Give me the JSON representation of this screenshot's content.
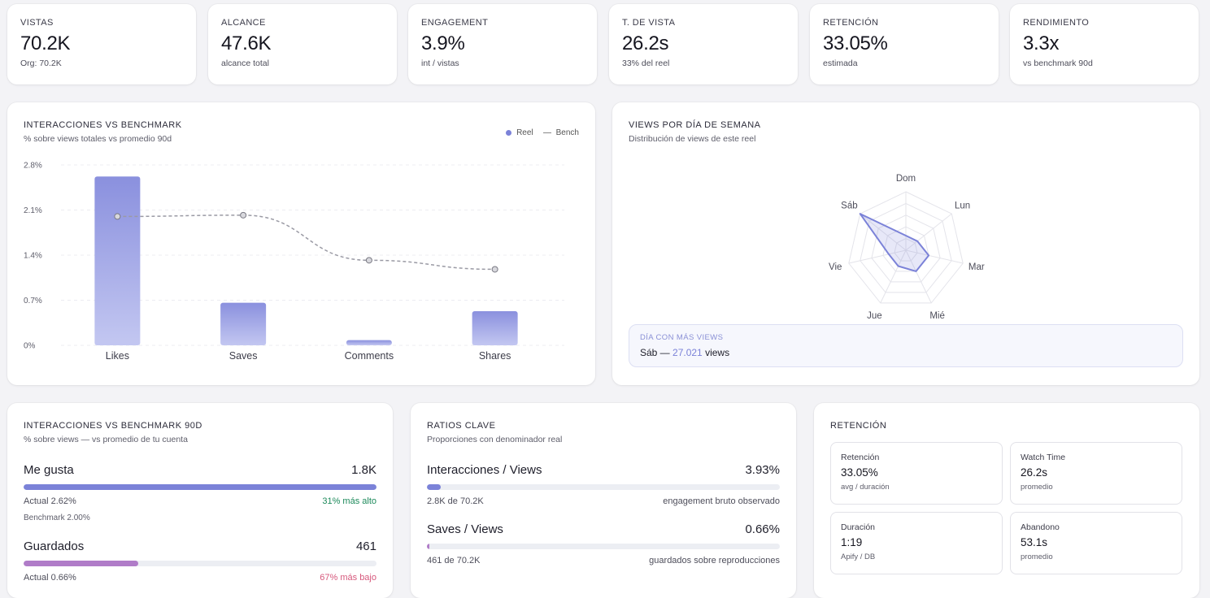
{
  "kpis": [
    {
      "label": "VISTAS",
      "value": "70.2K",
      "sub": "Org: 70.2K"
    },
    {
      "label": "ALCANCE",
      "value": "47.6K",
      "sub": "alcance total"
    },
    {
      "label": "ENGAGEMENT",
      "value": "3.9%",
      "sub": "int / vistas"
    },
    {
      "label": "T. DE VISTA",
      "value": "26.2s",
      "sub": "33% del reel"
    },
    {
      "label": "RETENCIÓN",
      "value": "33.05%",
      "sub": "estimada"
    },
    {
      "label": "RENDIMIENTO",
      "value": "3.3x",
      "sub": "vs benchmark 90d"
    }
  ],
  "interactions_chart": {
    "title": "INTERACCIONES VS BENCHMARK",
    "subtitle": "% sobre views totales vs promedio 90d",
    "legend_reel": "Reel",
    "legend_bench": "Bench"
  },
  "weekday_chart": {
    "title": "VIEWS POR DÍA DE SEMANA",
    "subtitle": "Distribución de views de este reel",
    "callout_label": "DÍA CON MÁS VIEWS",
    "callout_day": "Sáb —",
    "callout_value": "27.021",
    "callout_suffix": "views"
  },
  "chart_data": [
    {
      "type": "bar",
      "categories": [
        "Likes",
        "Saves",
        "Comments",
        "Shares"
      ],
      "series": [
        {
          "name": "Reel",
          "values": [
            2.62,
            0.66,
            0.08,
            0.53
          ]
        },
        {
          "name": "Bench",
          "values": [
            2.0,
            2.02,
            1.32,
            1.18
          ]
        }
      ],
      "title": "INTERACCIONES VS BENCHMARK",
      "ylim": [
        0,
        2.8
      ],
      "yticks": [
        "0%",
        "0.7%",
        "1.4%",
        "2.1%",
        "2.8%"
      ],
      "ytick_values": [
        0,
        0.7,
        1.4,
        2.1,
        2.8
      ],
      "grid": true,
      "legend": "top-right"
    },
    {
      "type": "radar",
      "categories": [
        "Dom",
        "Lun",
        "Mar",
        "Mié",
        "Jue",
        "Vie",
        "Sáb"
      ],
      "values": [
        0.25,
        0.25,
        0.4,
        0.4,
        0.3,
        0.3,
        1.0
      ],
      "title": "VIEWS POR DÍA DE SEMANA"
    }
  ],
  "bench90": {
    "title": "INTERACCIONES VS BENCHMARK 90D",
    "subtitle": "% sobre views — vs promedio de tu cuenta",
    "rows": [
      {
        "label": "Me gusta",
        "value": "1.8K",
        "actual": "Actual 2.62%",
        "delta": "31% más alto",
        "delta_dir": "up",
        "bench": "Benchmark 2.00%",
        "fill_pct": 100,
        "color": "#7b82d8"
      },
      {
        "label": "Guardados",
        "value": "461",
        "actual": "Actual 0.66%",
        "delta": "67% más bajo",
        "delta_dir": "down",
        "bench": "",
        "fill_pct": 32.5,
        "color": "#b07cc8"
      }
    ]
  },
  "ratios": {
    "title": "RATIOS CLAVE",
    "subtitle": "Proporciones con denominador real",
    "rows": [
      {
        "label": "Interacciones / Views",
        "value": "3.93%",
        "left": "2.8K de 70.2K",
        "right": "engagement bruto observado",
        "fill_pct": 3.93,
        "color": "#7b82d8"
      },
      {
        "label": "Saves / Views",
        "value": "0.66%",
        "left": "461 de 70.2K",
        "right": "guardados sobre reproducciones",
        "fill_pct": 0.66,
        "color": "#b07cc8"
      }
    ]
  },
  "retention": {
    "title": "RETENCIÓN",
    "tiles": [
      {
        "label": "Retención",
        "value": "33.05%",
        "sub": "avg / duración"
      },
      {
        "label": "Watch Time",
        "value": "26.2s",
        "sub": "promedio"
      },
      {
        "label": "Duración",
        "value": "1:19",
        "sub": "Apify / DB"
      },
      {
        "label": "Abandono",
        "value": "53.1s",
        "sub": "promedio"
      }
    ]
  }
}
